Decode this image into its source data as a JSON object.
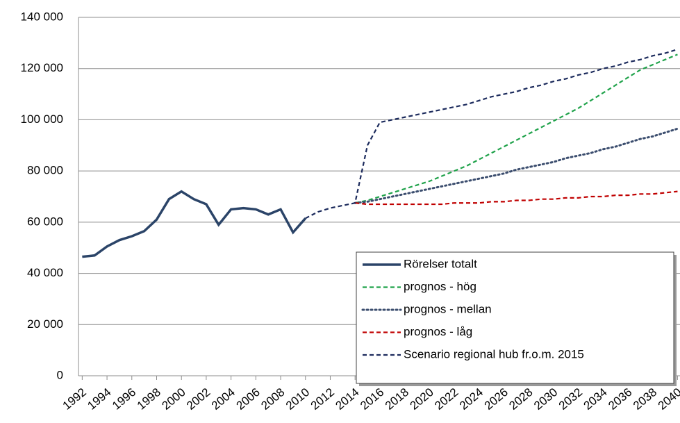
{
  "chart_data": {
    "type": "line",
    "x": [
      1992,
      1993,
      1994,
      1995,
      1996,
      1997,
      1998,
      1999,
      2000,
      2001,
      2002,
      2003,
      2004,
      2005,
      2006,
      2007,
      2008,
      2009,
      2010,
      2011,
      2012,
      2013,
      2014,
      2015,
      2016,
      2017,
      2018,
      2019,
      2020,
      2021,
      2022,
      2023,
      2024,
      2025,
      2026,
      2027,
      2028,
      2029,
      2030,
      2031,
      2032,
      2033,
      2034,
      2035,
      2036,
      2037,
      2038,
      2039,
      2040
    ],
    "series": [
      {
        "name": "Rörelser totalt",
        "color": "#2b4468",
        "style": "solid",
        "values": [
          46500,
          47000,
          50500,
          53000,
          54500,
          56500,
          61000,
          69000,
          72000,
          69000,
          67000,
          59000,
          65000,
          65500,
          65000,
          63000,
          65000,
          56000,
          61500,
          null,
          null,
          null,
          null,
          null,
          null,
          null,
          null,
          null,
          null,
          null,
          null,
          null,
          null,
          null,
          null,
          null,
          null,
          null,
          null,
          null,
          null,
          null,
          null,
          null,
          null,
          null,
          null,
          null,
          null
        ]
      },
      {
        "name": "prognos - hög",
        "color": "#1fa24a",
        "style": "dashed",
        "values": [
          null,
          null,
          null,
          null,
          null,
          null,
          null,
          null,
          null,
          null,
          null,
          null,
          null,
          null,
          null,
          null,
          null,
          null,
          null,
          null,
          null,
          null,
          67500,
          68500,
          70000,
          71500,
          73000,
          74500,
          76000,
          78000,
          80000,
          82000,
          84500,
          87000,
          89500,
          92000,
          94500,
          97000,
          99500,
          102000,
          104500,
          107500,
          110500,
          113500,
          116500,
          119500,
          121500,
          123500,
          125500
        ]
      },
      {
        "name": "prognos - mellan",
        "color": "#3b4d6e",
        "style": "dotted",
        "values": [
          null,
          null,
          null,
          null,
          null,
          null,
          null,
          null,
          null,
          null,
          null,
          null,
          null,
          null,
          null,
          null,
          null,
          null,
          null,
          null,
          null,
          null,
          67500,
          68000,
          69000,
          70000,
          71000,
          72000,
          73000,
          74000,
          75000,
          76000,
          77000,
          78000,
          79000,
          80500,
          81500,
          82500,
          83500,
          85000,
          86000,
          87000,
          88500,
          89500,
          91000,
          92500,
          93500,
          95000,
          96500
        ]
      },
      {
        "name": "prognos - låg",
        "color": "#c00000",
        "style": "dashed",
        "values": [
          null,
          null,
          null,
          null,
          null,
          null,
          null,
          null,
          null,
          null,
          null,
          null,
          null,
          null,
          null,
          null,
          null,
          null,
          null,
          null,
          null,
          null,
          67500,
          67000,
          67000,
          67000,
          67000,
          67000,
          67000,
          67000,
          67500,
          67500,
          67500,
          68000,
          68000,
          68500,
          68500,
          69000,
          69000,
          69500,
          69500,
          70000,
          70000,
          70500,
          70500,
          71000,
          71000,
          71500,
          72000
        ]
      },
      {
        "name": "Scenario regional hub fr.o.m. 2015",
        "color": "#1b2a5c",
        "style": "dashed",
        "values": [
          null,
          null,
          null,
          null,
          null,
          null,
          null,
          null,
          null,
          null,
          null,
          null,
          null,
          null,
          null,
          null,
          null,
          null,
          61500,
          64000,
          65500,
          66500,
          67500,
          90000,
          99000,
          100000,
          101000,
          102000,
          103000,
          104000,
          105000,
          106000,
          107500,
          109000,
          110000,
          111000,
          112500,
          113500,
          115000,
          116000,
          117500,
          118500,
          120000,
          121000,
          122500,
          123500,
          125000,
          126000,
          127500
        ]
      }
    ],
    "xlim": [
      1991.7,
      2040.2
    ],
    "xticks": [
      1992,
      1994,
      1996,
      1998,
      2000,
      2002,
      2004,
      2006,
      2008,
      2010,
      2012,
      2014,
      2016,
      2018,
      2020,
      2022,
      2024,
      2026,
      2028,
      2030,
      2032,
      2034,
      2036,
      2038,
      2040
    ],
    "ylim": [
      0,
      140000
    ],
    "yticks": [
      0,
      {
        "value": 20000,
        "label": "20 000"
      },
      {
        "value": 40000,
        "label": "40 000"
      },
      {
        "value": 60000,
        "label": "60 000"
      },
      {
        "value": 80000,
        "label": "80 000"
      },
      {
        "value": 100000,
        "label": "100 000"
      },
      {
        "value": 120000,
        "label": "120 000"
      },
      {
        "value": 140000,
        "label": "140 000"
      }
    ],
    "grid": true,
    "legend": "lower-right"
  }
}
